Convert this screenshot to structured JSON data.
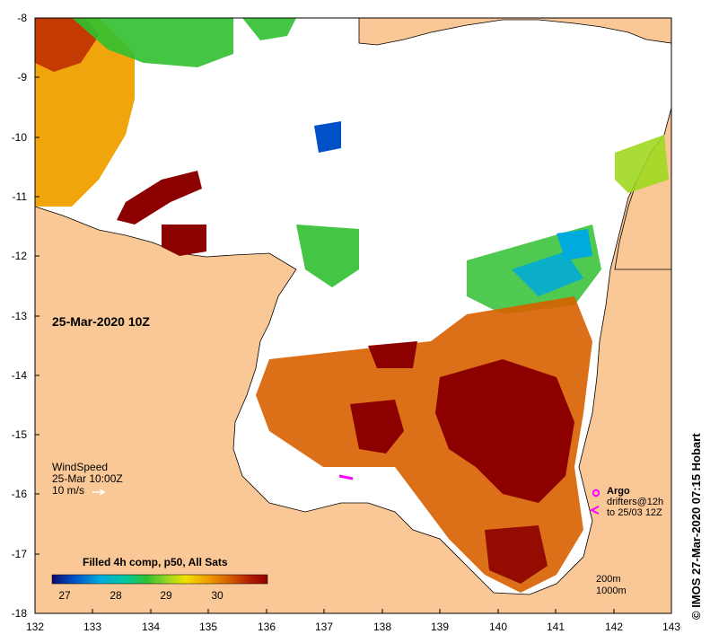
{
  "map": {
    "type": "sea surface temperature map",
    "date_label": "25-Mar-2020 10Z",
    "x_axis_ticks": [
      "132",
      "133",
      "134",
      "135",
      "136",
      "137",
      "138",
      "139",
      "140",
      "141",
      "142",
      "143"
    ],
    "y_axis_ticks": [
      "-8",
      "-9",
      "-10",
      "-11",
      "-12",
      "-13",
      "-14",
      "-15",
      "-16",
      "-17",
      "-18"
    ],
    "lon_range": [
      132,
      143
    ],
    "lat_range": [
      -18,
      -8
    ]
  },
  "wind": {
    "title": "WindSpeed",
    "time": "25-Mar 10:00Z",
    "scale": "10 m/s"
  },
  "argo": {
    "label": "Argo",
    "drifters_line1": "drifters@12h",
    "drifters_line2": "to 25/03 12Z"
  },
  "legend": {
    "title": "Filled 4h comp, p50, All Sats",
    "ticks": [
      "27",
      "28",
      "29",
      "30"
    ],
    "range": [
      26.5,
      31.0
    ],
    "colors": [
      "#0a0a6e",
      "#0050c8",
      "#00aadd",
      "#00c8a0",
      "#30c030",
      "#a0d820",
      "#f0e000",
      "#f0a000",
      "#d86000",
      "#b82000",
      "#8c0000"
    ]
  },
  "depth": {
    "contour1": "200m",
    "contour2": "1000m"
  },
  "credit": "© IMOS 27-Mar-2020 07:15 Hobart",
  "colors": {
    "land": "#fac896",
    "ocean_no_data": "#ffffff",
    "argo_marker": "#ff00ff"
  }
}
